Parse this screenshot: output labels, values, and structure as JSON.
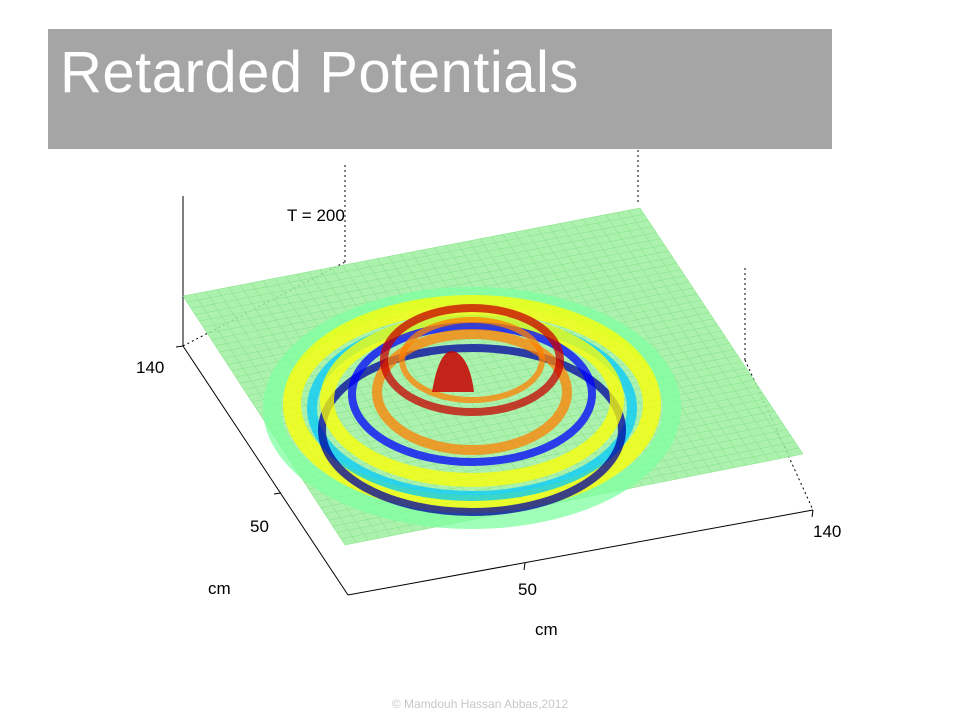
{
  "slide": {
    "title": "Retarded Potentials",
    "footer": "© Mamdouh Hassan Abbas,2012"
  },
  "figure": {
    "annotation": "T = 200",
    "axis_y_label": "cm",
    "axis_x_label": "cm",
    "y_ticks": [
      "140",
      "50"
    ],
    "x_ticks": [
      "50",
      "140"
    ],
    "colormap": [
      "#0000a0",
      "#0000ff",
      "#00c8ff",
      "#7fffa0",
      "#ffff00",
      "#ff8000",
      "#c80000"
    ],
    "plane_color": "#9ef0a0"
  }
}
